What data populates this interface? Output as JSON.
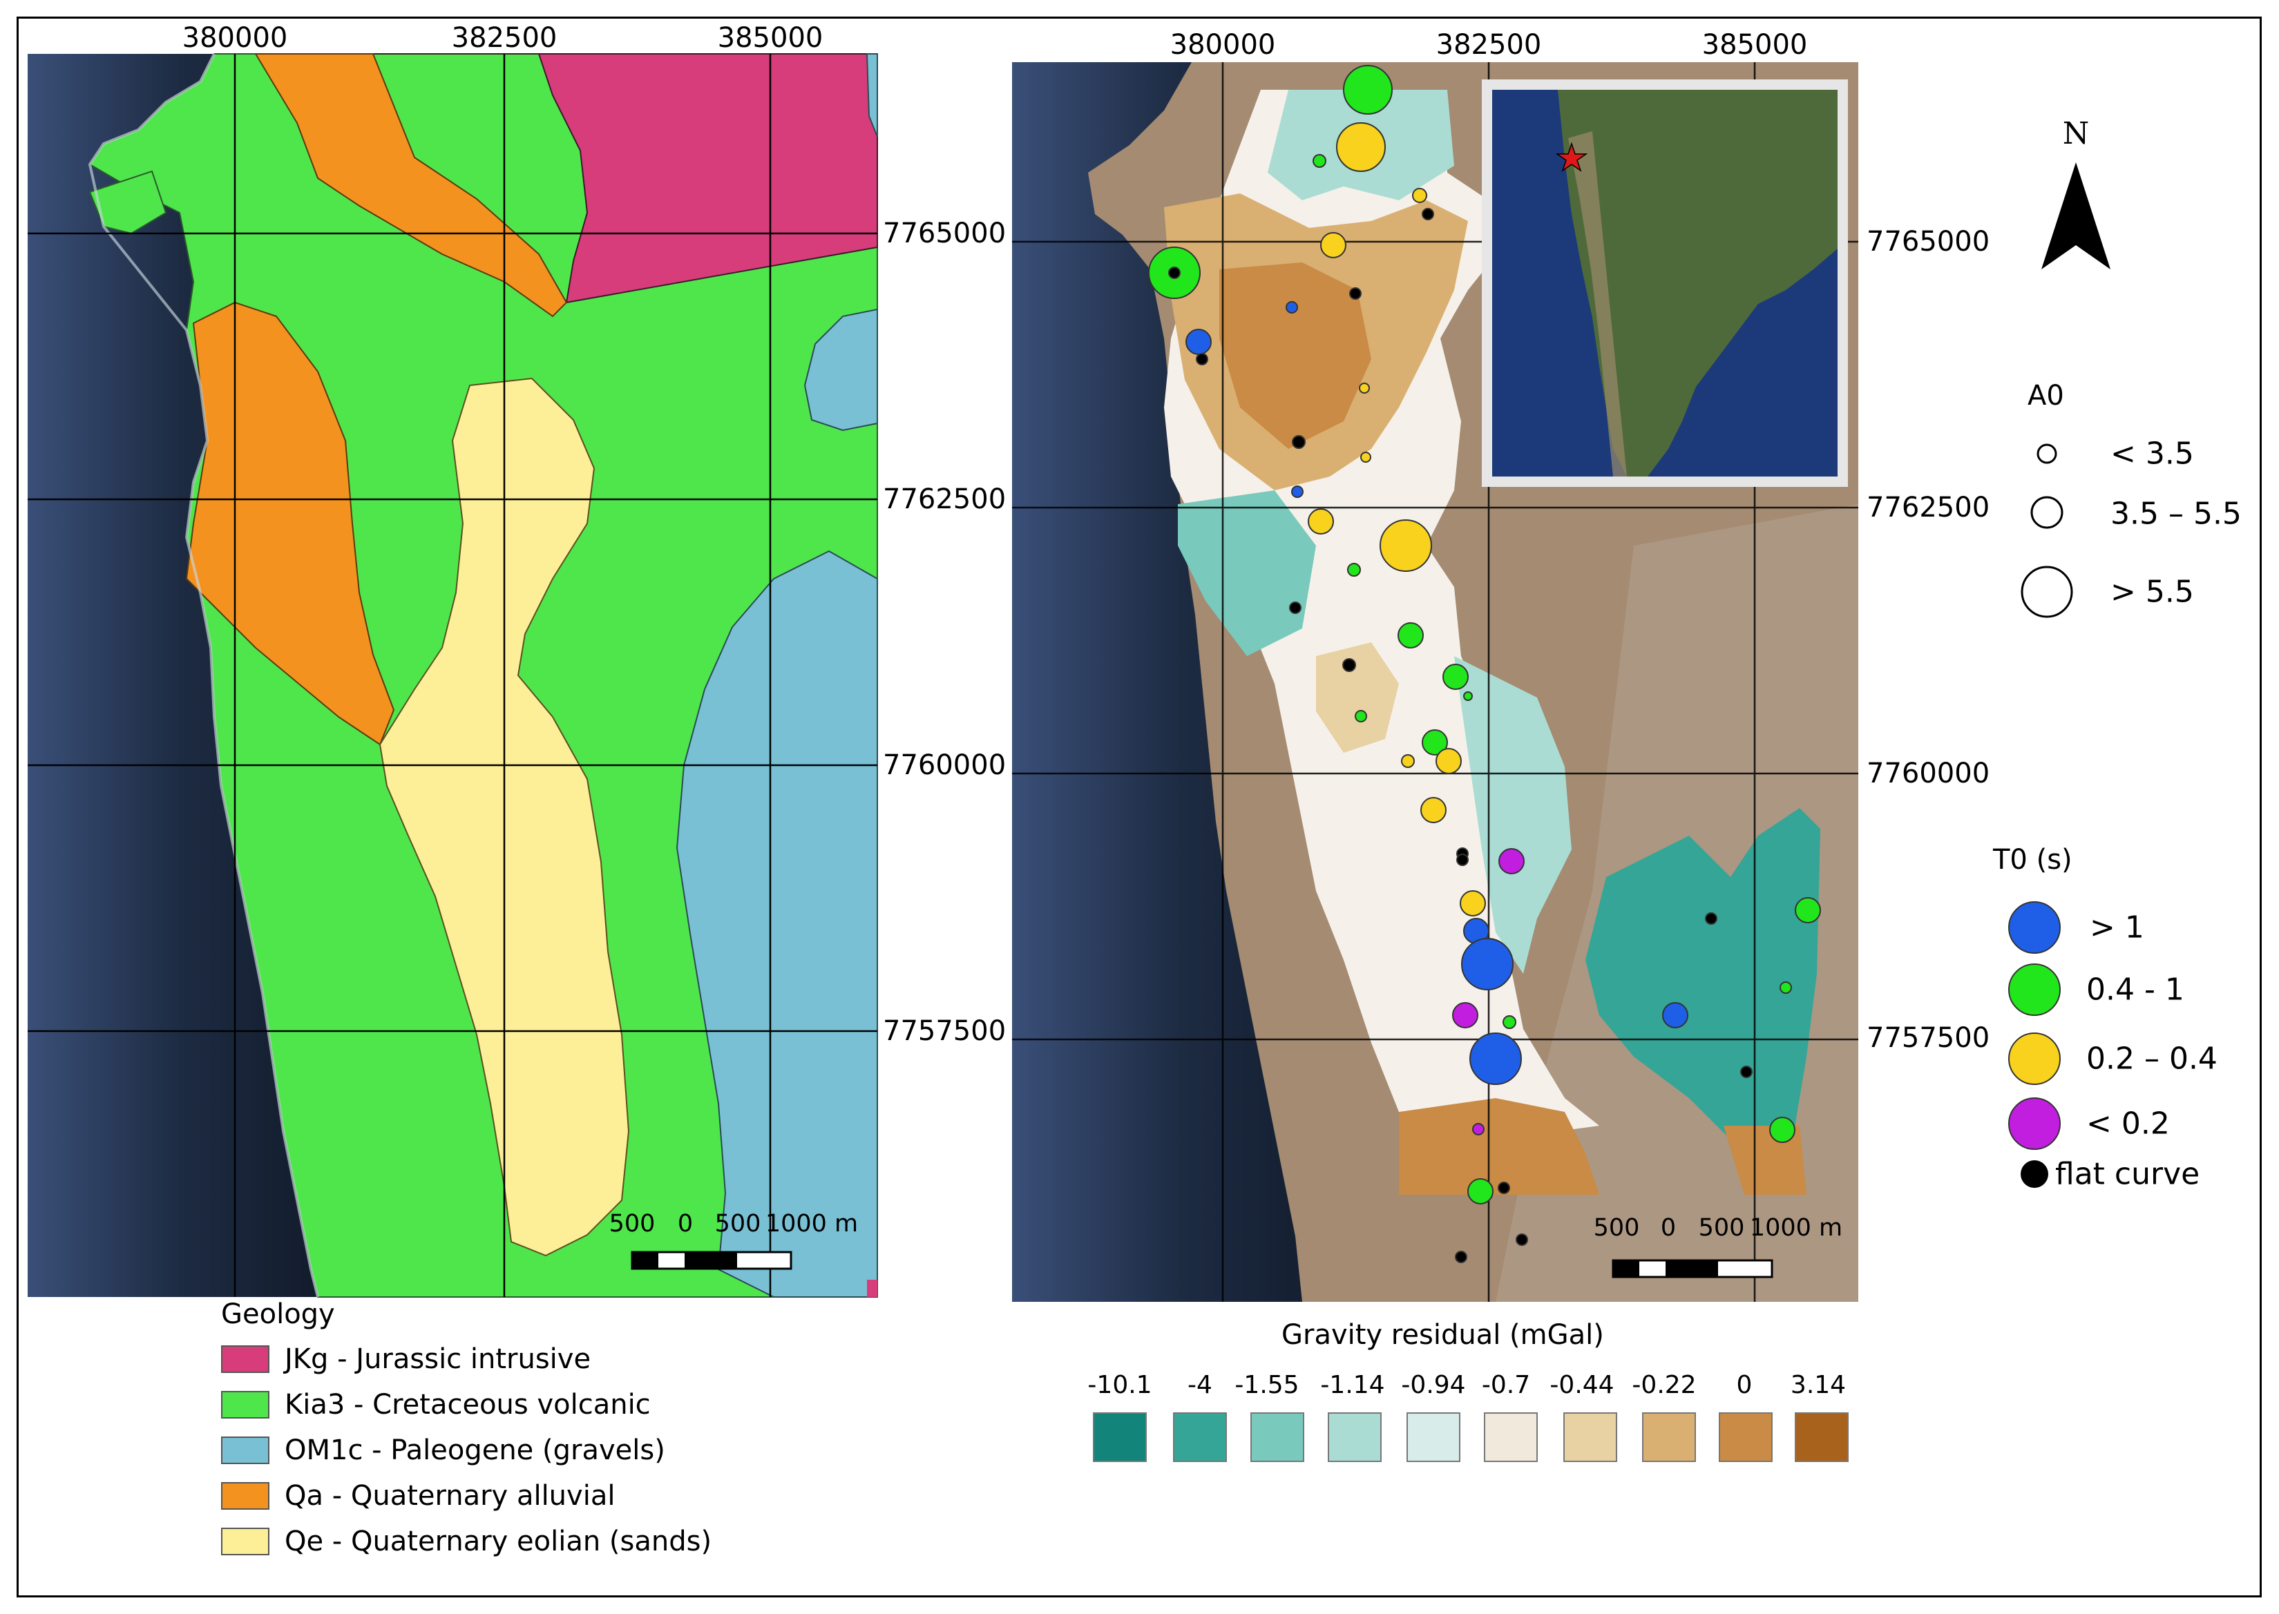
{
  "left_map": {
    "x_ticks": [
      "380000",
      "382500",
      "385000"
    ],
    "y_ticks": [
      "7765000",
      "7762500",
      "7760000",
      "7757500"
    ],
    "scalebar": [
      "500",
      "0",
      "500",
      "1000 m"
    ]
  },
  "right_map": {
    "x_ticks": [
      "380000",
      "382500",
      "385000"
    ],
    "y_ticks": [
      "7765000",
      "7762500",
      "7760000",
      "7757500"
    ],
    "scalebar": [
      "500",
      "0",
      "500",
      "1000 m"
    ],
    "inset_marker": "red star"
  },
  "north": {
    "label": "N"
  },
  "geology_legend": {
    "title": "Geology",
    "items": [
      {
        "label": "JKg - Jurassic intrusive",
        "color": "#d63d7a"
      },
      {
        "label": "Kia3 - Cretaceous volcanic",
        "color": "#4fe64c"
      },
      {
        "label": "OM1c - Paleogene (gravels)",
        "color": "#79c0d4"
      },
      {
        "label": "Qa - Quaternary alluvial",
        "color": "#f4921f"
      },
      {
        "label": "Qe - Quaternary eolian (sands)",
        "color": "#fdee98"
      }
    ]
  },
  "a0_legend": {
    "title": "A0",
    "items": [
      {
        "label": "< 3.5"
      },
      {
        "label": "3.5 – 5.5"
      },
      {
        "label": "> 5.5"
      }
    ]
  },
  "t0_legend": {
    "title": "T0 (s)",
    "items": [
      {
        "label": "> 1",
        "color": "#1f5fe8"
      },
      {
        "label": "0.4 - 1",
        "color": "#22e61c"
      },
      {
        "label": "0.2 – 0.4",
        "color": "#f8d21c"
      },
      {
        "label": "< 0.2",
        "color": "#c21ee0"
      },
      {
        "label": "flat curve",
        "color": "#000000"
      }
    ]
  },
  "gravity_legend": {
    "title": "Gravity residual (mGal)",
    "classes": [
      {
        "label": "-10.1",
        "color": "#12847a"
      },
      {
        "label": "-4",
        "color": "#34a596"
      },
      {
        "label": "-1.55",
        "color": "#79c9bd"
      },
      {
        "label": "-1.14",
        "color": "#aadcd3"
      },
      {
        "label": "-0.94",
        "color": "#d8ecea"
      },
      {
        "label": "-0.7",
        "color": "#f1e9dc"
      },
      {
        "label": "-0.44",
        "color": "#e8d1a2"
      },
      {
        "label": "-0.22",
        "color": "#d9b072"
      },
      {
        "label": "0",
        "color": "#c98b45"
      },
      {
        "label": "3.14",
        "color": "#a8621c"
      }
    ]
  }
}
